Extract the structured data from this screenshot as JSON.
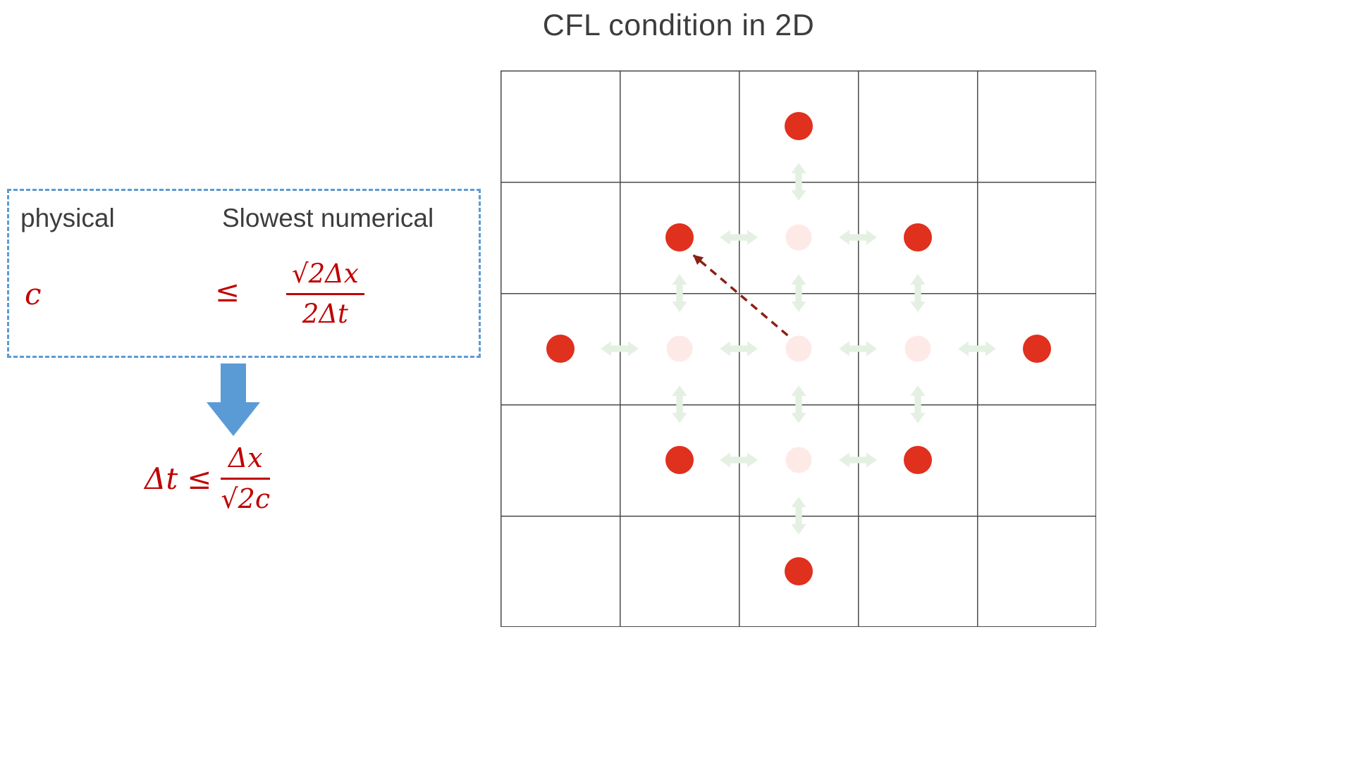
{
  "title": "CFL condition in 2D",
  "colors": {
    "accent_blue": "#5b9bd5",
    "math_red": "#c00000",
    "text_dark": "#3d3d3d",
    "dot_red": "#e0301e",
    "dot_faint_pink": "#fdeae7",
    "arrow_faint_green": "#e4f1e2",
    "dashed_arrow_maroon": "#8b2015",
    "grid_line": "#4a4a4a"
  },
  "formula_box": {
    "label_physical": "physical",
    "label_numerical": "Slowest numerical",
    "lhs": "c",
    "relation": "≤",
    "numerator": "√2Δx",
    "denominator": "2Δt"
  },
  "result_formula": {
    "lhs": "Δt",
    "relation": "≤",
    "numerator": "Δx",
    "denominator": "√2c"
  },
  "grid": {
    "cols": 5,
    "rows": 5,
    "red_dots": [
      [
        2,
        0
      ],
      [
        1,
        1
      ],
      [
        3,
        1
      ],
      [
        0,
        2
      ],
      [
        4,
        2
      ],
      [
        1,
        3
      ],
      [
        3,
        3
      ],
      [
        2,
        4
      ]
    ],
    "pink_dots": [
      [
        2,
        1
      ],
      [
        1,
        2
      ],
      [
        2,
        2
      ],
      [
        3,
        2
      ],
      [
        2,
        3
      ]
    ],
    "green_arrows_horizontal": [
      [
        1,
        2.5
      ],
      [
        2,
        2.5
      ],
      [
        3,
        2.5
      ],
      [
        4,
        2.5
      ],
      [
        2,
        1.5
      ],
      [
        3,
        1.5
      ],
      [
        2,
        3.5
      ],
      [
        3,
        3.5
      ]
    ],
    "green_arrows_vertical": [
      [
        2.5,
        1
      ],
      [
        2.5,
        2
      ],
      [
        2.5,
        3
      ],
      [
        2.5,
        4
      ],
      [
        1.5,
        2
      ],
      [
        1.5,
        3
      ],
      [
        3.5,
        2
      ],
      [
        3.5,
        3
      ]
    ],
    "dashed_arrow": {
      "from": [
        2.41,
        2.38
      ],
      "to": [
        1.62,
        1.66
      ]
    }
  }
}
